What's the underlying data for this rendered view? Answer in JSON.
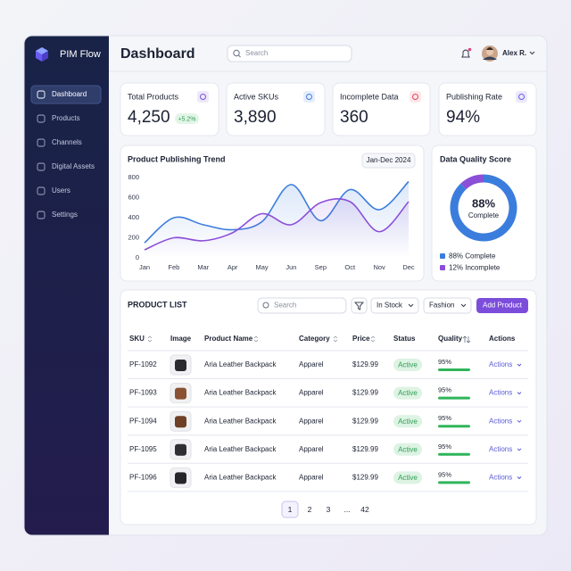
{
  "sidebar": {
    "brand": "PIM Flow",
    "menu": [
      "Dashboard",
      "Products",
      "Channels",
      "Digital Assets",
      "Users",
      "Settings"
    ]
  },
  "header": {
    "title": "Dashboard",
    "search_placeholder": "Search",
    "user": "Alex R."
  },
  "kpis": [
    {
      "label": "Total Products",
      "value": "4,250",
      "badge": "+5.2%"
    },
    {
      "label": "Active SKUs",
      "value": "3,890"
    },
    {
      "label": "Incomplete Data",
      "value": "360"
    },
    {
      "label": "Publishing Rate",
      "value": "94%"
    }
  ],
  "chart_data": [
    {
      "type": "line",
      "title": "Product Publishing Trend",
      "date_range": "Jan-Dec 2024",
      "categories": [
        "Jan",
        "Feb",
        "Mar",
        "Apr",
        "May",
        "Jun",
        "Sep",
        "Oct",
        "Nov",
        "Dec"
      ],
      "series": [
        {
          "color": "#3b7ddd",
          "values": [
            150,
            400,
            330,
            280,
            360,
            730,
            370,
            680,
            480,
            760
          ]
        },
        {
          "color": "#8b4fd8",
          "values": [
            80,
            200,
            170,
            250,
            440,
            330,
            550,
            560,
            260,
            560
          ]
        }
      ],
      "ylim": [
        0,
        800
      ],
      "yticks": [
        0,
        200,
        400,
        600,
        800
      ],
      "grid": false
    },
    {
      "type": "donut",
      "title": "Data Quality Score",
      "categories": [
        "88% Complete",
        "12% Incomplete"
      ],
      "values": [
        88,
        12
      ],
      "colors": [
        "#3b7ddd",
        "#8b4fd8"
      ],
      "center_label": "88%",
      "center_sublabel": "Complete"
    }
  ],
  "product_list": {
    "title": "PRODUCT LIST",
    "search_placeholder": "Search",
    "filters": [
      "In Stock",
      "Fashion"
    ],
    "button": "Add Product",
    "columns": [
      "SKU",
      "Image",
      "Product Name",
      "Category",
      "Price",
      "Status",
      "Quality",
      "Actions"
    ],
    "rows": [
      {
        "sku": "PF-1092",
        "product_name": "Aria Leather Backpack",
        "category": "Apparel",
        "price": "$129.99",
        "status": "Active",
        "quality": "95%",
        "action": "Actions"
      },
      {
        "sku": "PF-1093",
        "product_name": "Aria Leather Backpack",
        "category": "Apparel",
        "price": "$129.99",
        "status": "Active",
        "quality": "95%",
        "action": "Actions"
      },
      {
        "sku": "PF-1094",
        "product_name": "Aria Leather Backpack",
        "category": "Apparel",
        "price": "$129.99",
        "status": "Active",
        "quality": "95%",
        "action": "Actions"
      },
      {
        "sku": "PF-1095",
        "product_name": "Aria Leather Backpack",
        "category": "Apparel",
        "price": "$129.99",
        "status": "Active",
        "quality": "95%",
        "action": "Actions"
      },
      {
        "sku": "PF-1096",
        "product_name": "Aria Leather Backpack",
        "category": "Apparel",
        "price": "$129.99",
        "status": "Active",
        "quality": "95%",
        "action": "Actions"
      }
    ]
  },
  "pagination": [
    "1",
    "2",
    "3",
    "...",
    "42"
  ]
}
